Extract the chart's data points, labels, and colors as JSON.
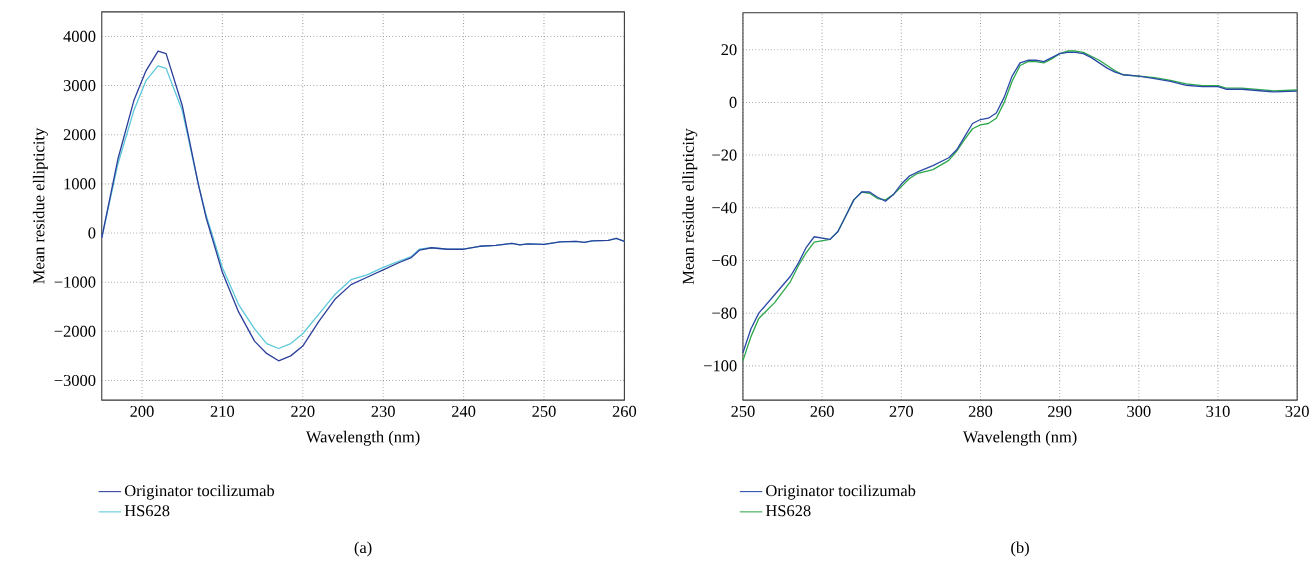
{
  "chart_data": [
    {
      "type": "line",
      "xlabel": "Wavelength (nm)",
      "ylabel": "Mean residue ellipticity",
      "annotations": [
        "(a)"
      ],
      "xlim": [
        195,
        260
      ],
      "xticks": [
        200,
        210,
        220,
        230,
        240,
        250,
        260
      ],
      "ylim": [
        -3400,
        4500
      ],
      "yticks": [
        {
          "value": -3000,
          "label": "−3000"
        },
        {
          "value": -2000,
          "label": "−2000"
        },
        {
          "value": -1000,
          "label": "−1000"
        },
        0,
        1000,
        2000,
        3000,
        4000
      ],
      "grid": true,
      "legend": "bottom",
      "marker": "none",
      "line_style": "solid",
      "x": [
        195,
        197,
        199,
        200.5,
        202,
        203,
        205,
        207,
        208,
        210,
        212,
        214,
        215.5,
        217,
        218.5,
        220,
        222,
        224,
        226,
        228,
        230,
        232,
        233.5,
        234.5,
        236,
        238,
        240,
        242,
        244,
        246,
        247,
        248,
        250,
        252,
        254,
        255,
        256,
        258,
        259,
        260
      ],
      "series": [
        {
          "name": "Originator tocilizumab",
          "color": "#2b3f9b",
          "values": [
            -100,
            1500,
            2700,
            3300,
            3700,
            3650,
            2600,
            1000,
            300,
            -800,
            -1600,
            -2200,
            -2450,
            -2600,
            -2500,
            -2300,
            -1800,
            -1350,
            -1050,
            -900,
            -750,
            -600,
            -500,
            -350,
            -300,
            -330,
            -330,
            -270,
            -250,
            -210,
            -240,
            -220,
            -230,
            -180,
            -170,
            -190,
            -160,
            -150,
            -110,
            -170
          ]
        },
        {
          "name": "HS628",
          "color": "#5cc8d9",
          "values": [
            -100,
            1400,
            2500,
            3100,
            3400,
            3350,
            2500,
            1000,
            350,
            -700,
            -1450,
            -1950,
            -2250,
            -2350,
            -2250,
            -2050,
            -1650,
            -1250,
            -950,
            -850,
            -700,
            -570,
            -480,
            -330,
            -300,
            -330,
            -330,
            -270,
            -250,
            -210,
            -240,
            -220,
            -230,
            -180,
            -170,
            -190,
            -160,
            -150,
            -110,
            -170
          ]
        }
      ]
    },
    {
      "type": "line",
      "xlabel": "Wavelength (nm)",
      "ylabel": "Mean residue ellipticity",
      "annotations": [
        "(b)"
      ],
      "xlim": [
        250,
        320
      ],
      "xticks": [
        250,
        260,
        270,
        280,
        290,
        300,
        310,
        320
      ],
      "ylim": [
        -113,
        34
      ],
      "yticks": [
        {
          "value": -100,
          "label": "−100"
        },
        {
          "value": -80,
          "label": "−80"
        },
        {
          "value": -60,
          "label": "−60"
        },
        {
          "value": -40,
          "label": "−40"
        },
        {
          "value": -20,
          "label": "−20"
        },
        0,
        20
      ],
      "grid": true,
      "legend": "bottom",
      "marker": "none",
      "line_style": "solid",
      "x": [
        250,
        251,
        252,
        254,
        256,
        257,
        258,
        259,
        260,
        261,
        262,
        263,
        264,
        265,
        266,
        267,
        268,
        269,
        270,
        271,
        272,
        274,
        276,
        277,
        278,
        279,
        280,
        281,
        282,
        283,
        284,
        285,
        286,
        287,
        288,
        289,
        290,
        291,
        292,
        293,
        294,
        295,
        296,
        297,
        298,
        300,
        302,
        304,
        306,
        308,
        310,
        311,
        313,
        315,
        317,
        320
      ],
      "series": [
        {
          "name": "Originator tocilizumab",
          "color": "#2b4aa8",
          "values": [
            -95,
            -86,
            -80,
            -73,
            -66,
            -61,
            -55,
            -51,
            -51.5,
            -52,
            -49,
            -43,
            -37,
            -34,
            -34,
            -36,
            -37.5,
            -35,
            -31,
            -28,
            -26.5,
            -24,
            -21,
            -18,
            -13,
            -8,
            -6.5,
            -6,
            -4,
            2,
            10,
            15,
            16,
            16,
            15.5,
            17,
            18.5,
            19,
            19,
            18.5,
            17,
            15,
            13,
            11.5,
            10.5,
            10,
            9,
            8,
            6.5,
            6,
            6,
            5,
            5,
            4.5,
            4,
            4.3
          ]
        },
        {
          "name": "HS628",
          "color": "#2ca84a",
          "values": [
            -98,
            -89,
            -82,
            -76,
            -68,
            -62,
            -57,
            -53,
            -52.5,
            -52,
            -49,
            -43,
            -37,
            -34,
            -34.5,
            -36.5,
            -37,
            -35,
            -32,
            -29,
            -27,
            -25.5,
            -22,
            -18.5,
            -14,
            -10,
            -8.5,
            -8,
            -6,
            0,
            8,
            14,
            15.5,
            15.5,
            15,
            16.5,
            18.5,
            19.5,
            19.5,
            19,
            17.5,
            16,
            14,
            12,
            10.5,
            10,
            9.4,
            8.4,
            7,
            6.4,
            6.4,
            5.4,
            5.4,
            4.9,
            4.4,
            4.7
          ]
        }
      ]
    }
  ]
}
